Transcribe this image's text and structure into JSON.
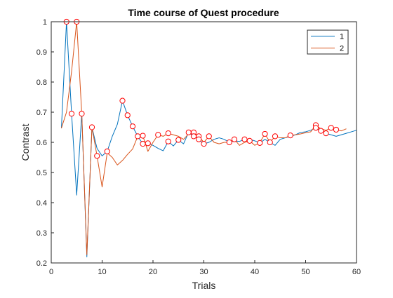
{
  "chart_data": {
    "type": "line",
    "title": "Time course of Quest procedure",
    "xlabel": "Trials",
    "ylabel": "Contrast",
    "xlim": [
      0,
      60
    ],
    "ylim": [
      0.2,
      1.0
    ],
    "xticks": [
      "0",
      "10",
      "20",
      "30",
      "40",
      "50",
      "60"
    ],
    "yticks": [
      "0.2",
      "0.3",
      "0.4",
      "0.5",
      "0.6",
      "0.7",
      "0.8",
      "0.9",
      "1"
    ],
    "grid": false,
    "legend_position": "top-right",
    "series": [
      {
        "name": "1",
        "color": "#0072BD",
        "points": [
          [
            2,
            0.647
          ],
          [
            3,
            1.0
          ],
          [
            4,
            0.695
          ],
          [
            5,
            0.425
          ],
          [
            6,
            0.695
          ],
          [
            7,
            0.22
          ],
          [
            8,
            0.65
          ],
          [
            9,
            0.58
          ],
          [
            10,
            0.555
          ],
          [
            11,
            0.57
          ],
          [
            12,
            0.62
          ],
          [
            13,
            0.66
          ],
          [
            14,
            0.738
          ],
          [
            15,
            0.69
          ],
          [
            16,
            0.653
          ],
          [
            17,
            0.62
          ],
          [
            18,
            0.595
          ],
          [
            19,
            0.597
          ],
          [
            20,
            0.59
          ],
          [
            21,
            0.58
          ],
          [
            22,
            0.572
          ],
          [
            23,
            0.603
          ],
          [
            24,
            0.588
          ],
          [
            25,
            0.608
          ],
          [
            26,
            0.595
          ],
          [
            27,
            0.633
          ],
          [
            28,
            0.62
          ],
          [
            29,
            0.61
          ],
          [
            30,
            0.595
          ],
          [
            31,
            0.6
          ],
          [
            32,
            0.61
          ],
          [
            33,
            0.615
          ],
          [
            34,
            0.61
          ],
          [
            35,
            0.6
          ],
          [
            36,
            0.605
          ],
          [
            37,
            0.603
          ],
          [
            38,
            0.61
          ],
          [
            39,
            0.61
          ],
          [
            40,
            0.605
          ],
          [
            41,
            0.598
          ],
          [
            42,
            0.61
          ],
          [
            43,
            0.6
          ],
          [
            44,
            0.59
          ],
          [
            45,
            0.61
          ],
          [
            46,
            0.615
          ],
          [
            47,
            0.62
          ],
          [
            48,
            0.625
          ],
          [
            49,
            0.633
          ],
          [
            50,
            0.635
          ],
          [
            51,
            0.64
          ],
          [
            52,
            0.648
          ],
          [
            53,
            0.638
          ],
          [
            54,
            0.63
          ],
          [
            55,
            0.625
          ],
          [
            56,
            0.62
          ],
          [
            57,
            0.625
          ],
          [
            58,
            0.63
          ],
          [
            59,
            0.635
          ],
          [
            60,
            0.64
          ]
        ]
      },
      {
        "name": "2",
        "color": "#D95319",
        "points": [
          [
            2,
            0.647
          ],
          [
            3,
            0.7
          ],
          [
            4,
            0.835
          ],
          [
            5,
            1.0
          ],
          [
            6,
            0.695
          ],
          [
            7,
            0.227
          ],
          [
            8,
            0.65
          ],
          [
            9,
            0.555
          ],
          [
            10,
            0.452
          ],
          [
            11,
            0.565
          ],
          [
            12,
            0.55
          ],
          [
            13,
            0.525
          ],
          [
            14,
            0.54
          ],
          [
            15,
            0.56
          ],
          [
            16,
            0.578
          ],
          [
            17,
            0.62
          ],
          [
            18,
            0.622
          ],
          [
            19,
            0.57
          ],
          [
            20,
            0.6
          ],
          [
            21,
            0.625
          ],
          [
            22,
            0.62
          ],
          [
            23,
            0.63
          ],
          [
            24,
            0.625
          ],
          [
            25,
            0.62
          ],
          [
            26,
            0.61
          ],
          [
            27,
            0.628
          ],
          [
            28,
            0.633
          ],
          [
            29,
            0.62
          ],
          [
            30,
            0.6
          ],
          [
            31,
            0.62
          ],
          [
            32,
            0.6
          ],
          [
            33,
            0.595
          ],
          [
            34,
            0.6
          ],
          [
            35,
            0.6
          ],
          [
            36,
            0.61
          ],
          [
            37,
            0.59
          ],
          [
            38,
            0.6
          ],
          [
            39,
            0.605
          ],
          [
            40,
            0.59
          ],
          [
            41,
            0.6
          ],
          [
            42,
            0.628
          ],
          [
            43,
            0.6
          ],
          [
            44,
            0.62
          ],
          [
            45,
            0.615
          ],
          [
            46,
            0.615
          ],
          [
            47,
            0.623
          ],
          [
            48,
            0.625
          ],
          [
            49,
            0.628
          ],
          [
            50,
            0.632
          ],
          [
            51,
            0.635
          ],
          [
            52,
            0.657
          ],
          [
            53,
            0.645
          ],
          [
            54,
            0.64
          ],
          [
            55,
            0.648
          ],
          [
            56,
            0.642
          ],
          [
            57,
            0.638
          ],
          [
            58,
            0.645
          ]
        ]
      }
    ],
    "markers": {
      "color": "#FF0000",
      "points": [
        [
          3,
          1.0
        ],
        [
          4,
          0.695
        ],
        [
          5,
          1.0
        ],
        [
          6,
          0.695
        ],
        [
          8,
          0.65
        ],
        [
          9,
          0.555
        ],
        [
          11,
          0.57
        ],
        [
          14,
          0.738
        ],
        [
          15,
          0.69
        ],
        [
          16,
          0.653
        ],
        [
          17,
          0.62
        ],
        [
          18,
          0.622
        ],
        [
          18,
          0.595
        ],
        [
          19,
          0.597
        ],
        [
          21,
          0.625
        ],
        [
          23,
          0.63
        ],
        [
          23,
          0.603
        ],
        [
          25,
          0.608
        ],
        [
          27,
          0.633
        ],
        [
          28,
          0.633
        ],
        [
          28,
          0.62
        ],
        [
          29,
          0.62
        ],
        [
          29,
          0.61
        ],
        [
          30,
          0.595
        ],
        [
          31,
          0.62
        ],
        [
          35,
          0.6
        ],
        [
          36,
          0.61
        ],
        [
          38,
          0.61
        ],
        [
          39,
          0.605
        ],
        [
          41,
          0.598
        ],
        [
          42,
          0.628
        ],
        [
          43,
          0.6
        ],
        [
          44,
          0.62
        ],
        [
          47,
          0.623
        ],
        [
          52,
          0.657
        ],
        [
          52,
          0.648
        ],
        [
          53,
          0.638
        ],
        [
          54,
          0.63
        ],
        [
          55,
          0.648
        ],
        [
          56,
          0.642
        ]
      ]
    }
  }
}
